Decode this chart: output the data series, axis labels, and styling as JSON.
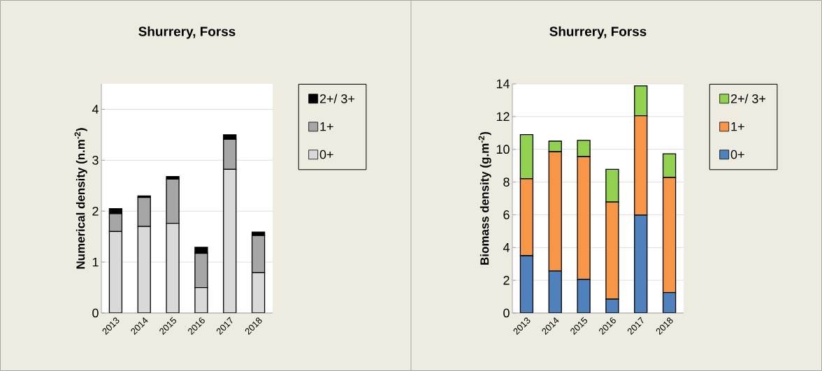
{
  "chart_data": [
    {
      "type": "bar",
      "title": "Shurrery, Forss",
      "ylabel": "Numerical density (n.m$^{-2}$)",
      "categories": [
        "2013",
        "2014",
        "2015",
        "2016",
        "2017",
        "2018"
      ],
      "stacked": true,
      "grid": "y",
      "legend": "right",
      "ylim": [
        0,
        4.5
      ],
      "yticks": [
        0,
        1,
        2,
        3,
        4
      ],
      "series": [
        {
          "name": "0+",
          "color": "#d9d9d9",
          "values": [
            1.6,
            1.7,
            1.76,
            0.5,
            2.82,
            0.79
          ]
        },
        {
          "name": "1+",
          "color": "#a6a6a6",
          "values": [
            0.35,
            0.57,
            0.87,
            0.67,
            0.59,
            0.73
          ]
        },
        {
          "name": "2+/ 3+",
          "color": "#000000",
          "values": [
            0.1,
            0.03,
            0.05,
            0.12,
            0.09,
            0.07
          ]
        }
      ]
    },
    {
      "type": "bar",
      "title": "Shurrery, Forss",
      "ylabel": "Biomass density (g.m$^{-2}$)",
      "categories": [
        "2013",
        "2014",
        "2015",
        "2016",
        "2017",
        "2018"
      ],
      "stacked": true,
      "grid": "y",
      "legend": "right",
      "ylim": [
        0,
        14
      ],
      "yticks": [
        0,
        2,
        4,
        6,
        8,
        10,
        12,
        14
      ],
      "series": [
        {
          "name": "0+",
          "color": "#4f81bd",
          "values": [
            3.5,
            2.57,
            2.05,
            0.85,
            5.98,
            1.25
          ]
        },
        {
          "name": "1+",
          "color": "#f79646",
          "values": [
            4.7,
            7.28,
            7.5,
            5.93,
            6.07,
            7.03
          ]
        },
        {
          "name": "2+/ 3+",
          "color": "#92d050",
          "values": [
            2.7,
            0.65,
            1.0,
            2.0,
            1.83,
            1.45
          ]
        }
      ]
    }
  ]
}
